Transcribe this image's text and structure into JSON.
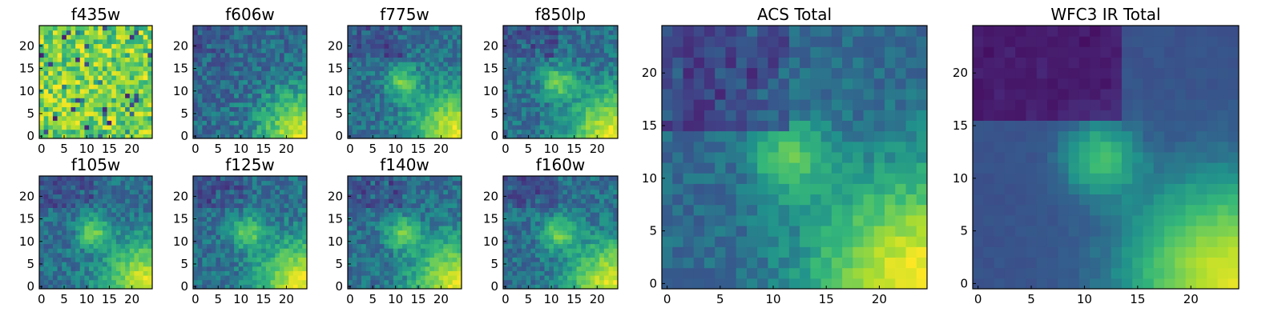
{
  "chart_data": [
    {
      "type": "heatmap",
      "title": "f435w",
      "xticks": [
        "0",
        "5",
        "10",
        "15",
        "20"
      ],
      "yticks": [
        "0",
        "5",
        "10",
        "15",
        "20"
      ],
      "xlim": [
        0,
        24
      ],
      "ylim": [
        0,
        24
      ],
      "colormap": "viridis",
      "seed": 11,
      "pattern": "noise"
    },
    {
      "type": "heatmap",
      "title": "f606w",
      "xticks": [
        "0",
        "5",
        "10",
        "15",
        "20"
      ],
      "yticks": [
        "0",
        "5",
        "10",
        "15",
        "20"
      ],
      "xlim": [
        0,
        24
      ],
      "ylim": [
        0,
        24
      ],
      "colormap": "viridis",
      "seed": 23,
      "pattern": "corner"
    },
    {
      "type": "heatmap",
      "title": "f775w",
      "xticks": [
        "0",
        "5",
        "10",
        "15",
        "20"
      ],
      "yticks": [
        "0",
        "5",
        "10",
        "15",
        "20"
      ],
      "xlim": [
        0,
        24
      ],
      "ylim": [
        0,
        24
      ],
      "colormap": "viridis",
      "seed": 37,
      "pattern": "blob"
    },
    {
      "type": "heatmap",
      "title": "f850lp",
      "xticks": [
        "0",
        "5",
        "10",
        "15",
        "20"
      ],
      "yticks": [
        "0",
        "5",
        "10",
        "15",
        "20"
      ],
      "xlim": [
        0,
        24
      ],
      "ylim": [
        0,
        24
      ],
      "colormap": "viridis",
      "seed": 41,
      "pattern": "blob"
    },
    {
      "type": "heatmap",
      "title": "f105w",
      "xticks": [
        "0",
        "5",
        "10",
        "15",
        "20"
      ],
      "yticks": [
        "0",
        "5",
        "10",
        "15",
        "20"
      ],
      "xlim": [
        0,
        24
      ],
      "ylim": [
        0,
        24
      ],
      "colormap": "viridis",
      "seed": 53,
      "pattern": "blob"
    },
    {
      "type": "heatmap",
      "title": "f125w",
      "xticks": [
        "0",
        "5",
        "10",
        "15",
        "20"
      ],
      "yticks": [
        "0",
        "5",
        "10",
        "15",
        "20"
      ],
      "xlim": [
        0,
        24
      ],
      "ylim": [
        0,
        24
      ],
      "colormap": "viridis",
      "seed": 61,
      "pattern": "blob"
    },
    {
      "type": "heatmap",
      "title": "f140w",
      "xticks": [
        "0",
        "5",
        "10",
        "15",
        "20"
      ],
      "yticks": [
        "0",
        "5",
        "10",
        "15",
        "20"
      ],
      "xlim": [
        0,
        24
      ],
      "ylim": [
        0,
        24
      ],
      "colormap": "viridis",
      "seed": 71,
      "pattern": "blob"
    },
    {
      "type": "heatmap",
      "title": "f160w",
      "xticks": [
        "0",
        "5",
        "10",
        "15",
        "20"
      ],
      "yticks": [
        "0",
        "5",
        "10",
        "15",
        "20"
      ],
      "xlim": [
        0,
        24
      ],
      "ylim": [
        0,
        24
      ],
      "colormap": "viridis",
      "seed": 83,
      "pattern": "blob"
    },
    {
      "type": "heatmap",
      "title": "ACS Total",
      "xticks": [
        "0",
        "5",
        "10",
        "15",
        "20"
      ],
      "yticks": [
        "0",
        "5",
        "10",
        "15",
        "20"
      ],
      "xlim": [
        0,
        24
      ],
      "ylim": [
        0,
        24
      ],
      "colormap": "viridis",
      "seed": 97,
      "pattern": "total"
    },
    {
      "type": "heatmap",
      "title": "WFC3 IR Total",
      "xticks": [
        "0",
        "5",
        "10",
        "15",
        "20"
      ],
      "yticks": [
        "0",
        "5",
        "10",
        "15",
        "20"
      ],
      "xlim": [
        0,
        24
      ],
      "ylim": [
        0,
        24
      ],
      "colormap": "viridis",
      "seed": 101,
      "pattern": "smooth"
    }
  ]
}
